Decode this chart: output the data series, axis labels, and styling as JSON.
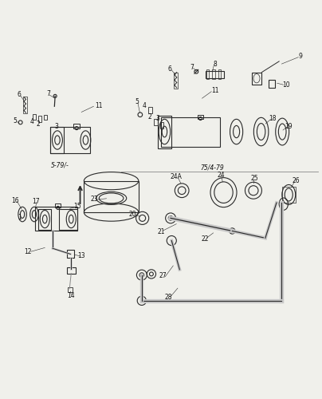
{
  "background_color": "#f0f0eb",
  "line_color": "#2a2a2a",
  "text_color": "#111111",
  "figsize": [
    4.04,
    5.0
  ],
  "dpi": 100
}
